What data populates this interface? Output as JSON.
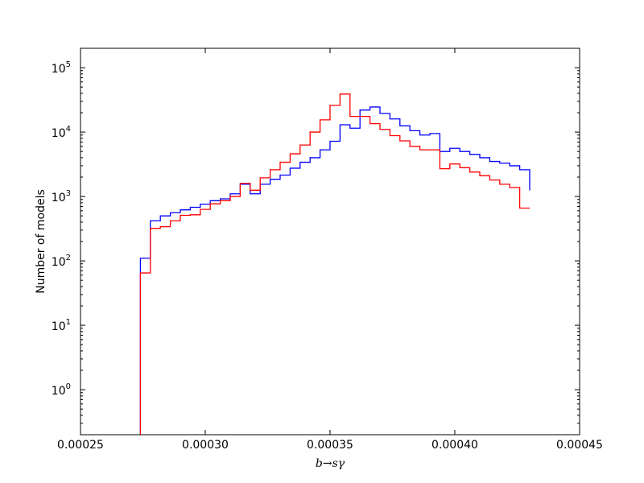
{
  "chart_data": {
    "type": "line",
    "step": true,
    "xlabel": "b→sγ",
    "ylabel": "Number of models",
    "yscale": "log",
    "xlim": [
      0.00025,
      0.00045
    ],
    "ylim": [
      0.2,
      200000
    ],
    "x_ticks": [
      "0.00025",
      "0.00030",
      "0.00035",
      "0.00040",
      "0.00045"
    ],
    "y_ticks": [
      {
        "base": "10",
        "exp": "0",
        "value": 1
      },
      {
        "base": "10",
        "exp": "1",
        "value": 10
      },
      {
        "base": "10",
        "exp": "2",
        "value": 100
      },
      {
        "base": "10",
        "exp": "3",
        "value": 1000
      },
      {
        "base": "10",
        "exp": "4",
        "value": 10000
      },
      {
        "base": "10",
        "exp": "5",
        "value": 100000
      }
    ],
    "grid": false,
    "bin_edges": [
      0.000274,
      0.000278,
      0.000282,
      0.000286,
      0.00029,
      0.000294,
      0.000298,
      0.000302,
      0.000306,
      0.00031,
      0.000314,
      0.000318,
      0.000322,
      0.000326,
      0.00033,
      0.000334,
      0.000338,
      0.000342,
      0.000346,
      0.00035,
      0.000354,
      0.000358,
      0.000362,
      0.000366,
      0.00037,
      0.000374,
      0.000378,
      0.000382,
      0.000386,
      0.00039,
      0.000394,
      0.000398,
      0.000402,
      0.000406,
      0.00041,
      0.000414,
      0.000418,
      0.000422,
      0.000426,
      0.00043
    ],
    "series": [
      {
        "color": "#0000ff",
        "values": [
          110,
          420,
          500,
          560,
          620,
          680,
          760,
          860,
          920,
          1100,
          1550,
          1100,
          1550,
          1850,
          2150,
          2750,
          3400,
          4000,
          5300,
          7200,
          13000,
          11500,
          22000,
          24500,
          19500,
          16000,
          12500,
          10500,
          9000,
          9500,
          5000,
          5600,
          5000,
          4500,
          4000,
          3500,
          3300,
          3000,
          2600,
          1250
        ]
      },
      {
        "color": "#ff0000",
        "values": [
          65,
          320,
          340,
          420,
          510,
          520,
          630,
          770,
          860,
          1000,
          1600,
          1250,
          1950,
          2600,
          3400,
          4600,
          6300,
          10000,
          15500,
          26000,
          39000,
          17500,
          17500,
          13500,
          11000,
          8800,
          7300,
          6000,
          5300,
          5300,
          2700,
          3200,
          2800,
          2400,
          2100,
          1800,
          1550,
          1380,
          660,
          660
        ]
      }
    ]
  }
}
